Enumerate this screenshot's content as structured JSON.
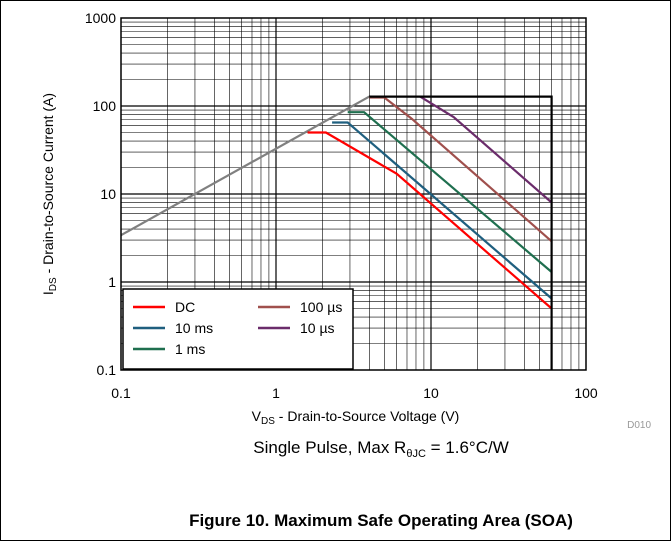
{
  "chart_data": {
    "type": "line",
    "xscale": "log",
    "yscale": "log",
    "xlim": [
      0.1,
      100
    ],
    "ylim": [
      0.1,
      1000
    ],
    "xticks": [
      "0.1",
      "1",
      "10",
      "100"
    ],
    "yticks": [
      "0.1",
      "1",
      "10",
      "100",
      "1000"
    ],
    "xlabel": {
      "main": "V",
      "sub": "DS",
      "rest": " - Drain-to-Source Voltage (V)"
    },
    "ylabel": {
      "main": "I",
      "sub": "DS",
      "rest": " - Drain-to-Source Current (A)"
    },
    "grid": true,
    "legend_position": "bottom-left",
    "limit_line": {
      "color": "#808080",
      "points": [
        [
          0.1,
          3.4
        ],
        [
          4,
          128
        ]
      ]
    },
    "boundary": {
      "color": "#000000",
      "points": [
        [
          4,
          128
        ],
        [
          60,
          128
        ],
        [
          60,
          0.1
        ]
      ]
    },
    "series": [
      {
        "name": "DC",
        "color": "#ff0000",
        "points": [
          [
            1.6,
            50
          ],
          [
            2.1,
            50
          ],
          [
            6,
            17
          ],
          [
            60,
            0.5
          ]
        ]
      },
      {
        "name": "10 ms",
        "color": "#1f5f7f",
        "points": [
          [
            2.3,
            65
          ],
          [
            2.9,
            65
          ],
          [
            60,
            0.65
          ]
        ]
      },
      {
        "name": "1 ms",
        "color": "#1f6f4f",
        "points": [
          [
            2.9,
            85
          ],
          [
            3.7,
            85
          ],
          [
            60,
            1.3
          ]
        ]
      },
      {
        "name": "100 µs",
        "color": "#a0504d",
        "points": [
          [
            4,
            125
          ],
          [
            5,
            125
          ],
          [
            7.5,
            72
          ],
          [
            60,
            2.9
          ]
        ]
      },
      {
        "name": "10 µs",
        "color": "#6b2c6b",
        "points": [
          [
            8.5,
            128
          ],
          [
            14,
            75
          ],
          [
            60,
            8
          ]
        ]
      }
    ]
  },
  "subtitle": {
    "prefix": "Single Pulse, Max R",
    "sub": "θJC",
    "suffix": " = 1.6°C/W"
  },
  "figure_id": "D010",
  "caption": "Figure 10. Maximum Safe Operating Area (SOA)"
}
